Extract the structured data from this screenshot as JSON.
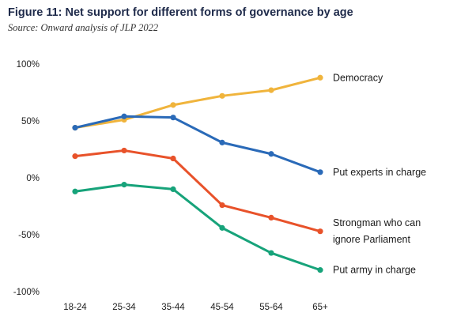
{
  "title": "Figure 11: Net support for different forms of governance by age",
  "source": "Source: Onward analysis of JLP 2022",
  "chart_data": {
    "type": "line",
    "categories": [
      "18-24",
      "25-34",
      "35-44",
      "45-54",
      "55-64",
      "65+"
    ],
    "ylim": [
      -100,
      100
    ],
    "yticks": [
      {
        "value": 100,
        "label": "100%"
      },
      {
        "value": 50,
        "label": "50%"
      },
      {
        "value": 0,
        "label": "0%"
      },
      {
        "value": -50,
        "label": "-50%"
      },
      {
        "value": -100,
        "label": "-100%"
      }
    ],
    "grid": false,
    "series": [
      {
        "name": "Democracy",
        "label_lines": [
          "Democracy"
        ],
        "color": "#f0b43c",
        "values": [
          44,
          51,
          64,
          72,
          77,
          88
        ]
      },
      {
        "name": "Put experts in charge",
        "label_lines": [
          "Put experts in charge"
        ],
        "color": "#2a6ab8",
        "values": [
          44,
          54,
          53,
          31,
          21,
          5
        ]
      },
      {
        "name": "Strongman who can ignore Parliament",
        "label_lines": [
          "Strongman who can",
          "ignore Parliament"
        ],
        "color": "#e8522a",
        "values": [
          19,
          24,
          17,
          -24,
          -35,
          -47
        ]
      },
      {
        "name": "Put army in charge",
        "label_lines": [
          "Put army in charge"
        ],
        "color": "#17a37a",
        "values": [
          -12,
          -6,
          -10,
          -44,
          -66,
          -81
        ]
      }
    ]
  }
}
